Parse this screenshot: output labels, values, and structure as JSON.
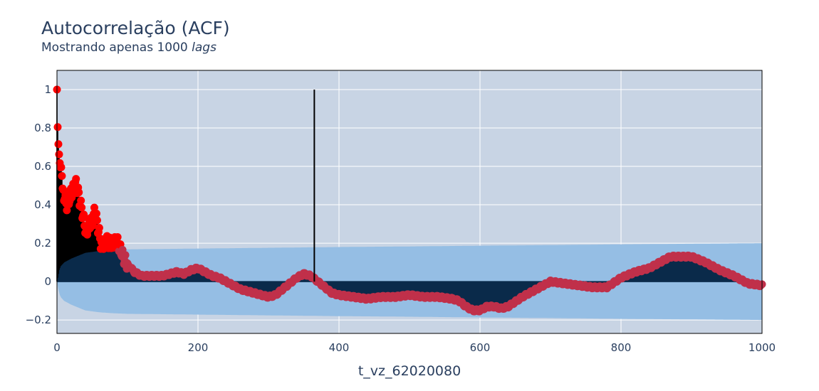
{
  "colors": {
    "plot_bg": "#c8d4e4",
    "grid": "#ffffff",
    "stem": "#000000",
    "confidence_band": "#95bee4",
    "marker_outside": "#ff0000",
    "marker_inside": "#c0304a",
    "dark_overlap": "#0a2a4a",
    "axis_text": "#2a3f5f"
  },
  "chart_data": {
    "type": "scatter",
    "title": "Autocorrelação (ACF)",
    "subtitle_prefix": "Mostrando apenas 1000 ",
    "subtitle_italic": "lags",
    "xlabel": "t_vz_62020080",
    "ylabel": "",
    "xlim": [
      0,
      1000
    ],
    "ylim": [
      -0.27,
      1.1
    ],
    "xticks": [
      0,
      200,
      400,
      600,
      800,
      1000
    ],
    "xtick_labels": [
      "0",
      "200",
      "400",
      "600",
      "800",
      "1000"
    ],
    "yticks": [
      -0.2,
      0,
      0.2,
      0.4,
      0.6,
      0.8,
      1
    ],
    "ytick_labels": [
      "−0.2",
      "0",
      "0.2",
      "0.4",
      "0.6",
      "0.8",
      "1"
    ],
    "grid": true,
    "highlight_lag": {
      "x": 365,
      "y": 1.0
    },
    "acf_keypoints": {
      "x": [
        0,
        1,
        2,
        3,
        4,
        5,
        6,
        7,
        8,
        10,
        12,
        14,
        16,
        18,
        20,
        22,
        25,
        28,
        30,
        32,
        35,
        38,
        40,
        42,
        45,
        48,
        50,
        53,
        56,
        58,
        60,
        62,
        65,
        68,
        70,
        75,
        80,
        85,
        90,
        95,
        100,
        110,
        120,
        130,
        140,
        150,
        160,
        170,
        180,
        190,
        200,
        210,
        220,
        230,
        240,
        250,
        260,
        270,
        280,
        290,
        300,
        310,
        320,
        330,
        340,
        350,
        360,
        370,
        380,
        390,
        400,
        420,
        440,
        460,
        480,
        500,
        520,
        540,
        560,
        570,
        580,
        590,
        600,
        610,
        620,
        630,
        640,
        660,
        680,
        700,
        720,
        740,
        760,
        780,
        800,
        820,
        840,
        860,
        870,
        880,
        900,
        920,
        940,
        960,
        980,
        1000
      ],
      "y": [
        1.0,
        0.8,
        0.71,
        0.66,
        0.62,
        0.6,
        0.6,
        0.55,
        0.48,
        0.45,
        0.42,
        0.4,
        0.4,
        0.44,
        0.47,
        0.46,
        0.52,
        0.5,
        0.47,
        0.42,
        0.38,
        0.32,
        0.28,
        0.25,
        0.3,
        0.31,
        0.3,
        0.36,
        0.33,
        0.28,
        0.25,
        0.2,
        0.19,
        0.2,
        0.21,
        0.2,
        0.2,
        0.21,
        0.17,
        0.12,
        0.09,
        0.05,
        0.03,
        0.03,
        0.03,
        0.03,
        0.04,
        0.05,
        0.04,
        0.06,
        0.07,
        0.05,
        0.03,
        0.02,
        0.0,
        -0.02,
        -0.04,
        -0.05,
        -0.06,
        -0.07,
        -0.08,
        -0.07,
        -0.04,
        -0.01,
        0.02,
        0.04,
        0.03,
        0.0,
        -0.03,
        -0.06,
        -0.07,
        -0.08,
        -0.09,
        -0.08,
        -0.08,
        -0.07,
        -0.08,
        -0.08,
        -0.09,
        -0.1,
        -0.13,
        -0.15,
        -0.15,
        -0.13,
        -0.13,
        -0.14,
        -0.13,
        -0.08,
        -0.04,
        0.0,
        -0.01,
        -0.02,
        -0.03,
        -0.03,
        0.02,
        0.05,
        0.07,
        0.11,
        0.13,
        0.13,
        0.13,
        0.1,
        0.06,
        0.03,
        -0.01,
        -0.02
      ]
    },
    "confidence_keypoints": {
      "x": [
        0,
        1,
        3,
        5,
        10,
        15,
        20,
        30,
        40,
        60,
        80,
        100,
        150,
        200,
        300,
        400,
        500,
        600,
        700,
        800,
        900,
        1000
      ],
      "y": [
        0.0,
        0.02,
        0.06,
        0.08,
        0.1,
        0.11,
        0.12,
        0.135,
        0.15,
        0.16,
        0.165,
        0.168,
        0.17,
        0.172,
        0.176,
        0.18,
        0.183,
        0.187,
        0.19,
        0.194,
        0.197,
        0.2
      ]
    }
  }
}
